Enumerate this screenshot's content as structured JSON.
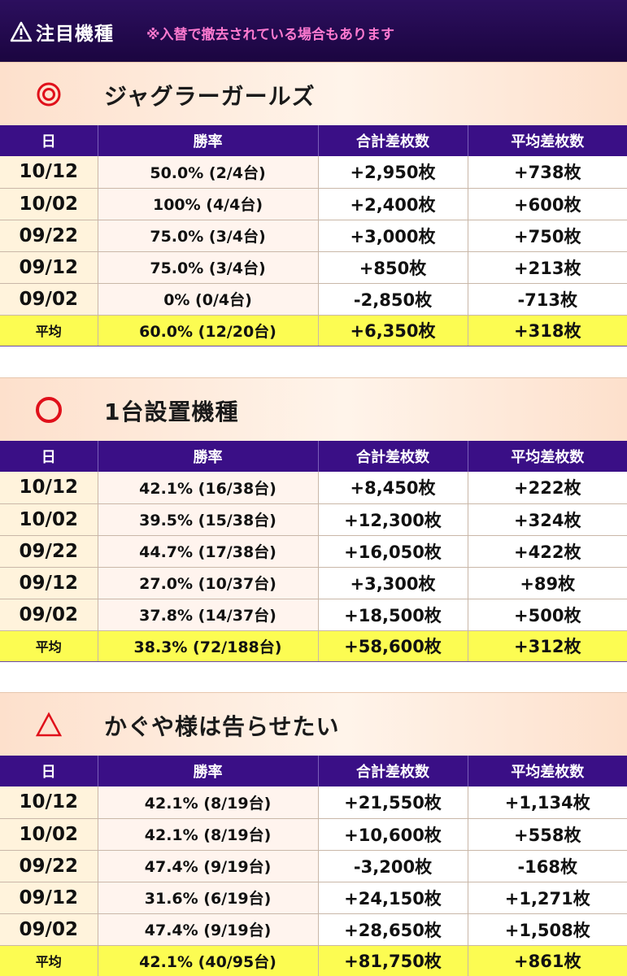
{
  "header": {
    "icon": "warning-icon",
    "title": "注目機種",
    "note": "※入替で撤去されている場合もあります",
    "note_color": "#ff7ad0",
    "bg_color": "#2c0f5e"
  },
  "columns": {
    "date": "日",
    "rate": "勝率",
    "total": "合計差枚数",
    "avg": "平均差枚数"
  },
  "sections": [
    {
      "mark": "◎",
      "mark_icon": "double-circle-icon",
      "title": "ジャグラーガールズ",
      "rows": [
        {
          "date": "10/12",
          "rate": "50.0% (2/4台)",
          "total": "+2,950枚",
          "avg": "+738枚"
        },
        {
          "date": "10/02",
          "rate": "100% (4/4台)",
          "total": "+2,400枚",
          "avg": "+600枚"
        },
        {
          "date": "09/22",
          "rate": "75.0% (3/4台)",
          "total": "+3,000枚",
          "avg": "+750枚"
        },
        {
          "date": "09/12",
          "rate": "75.0% (3/4台)",
          "total": "+850枚",
          "avg": "+213枚"
        },
        {
          "date": "09/02",
          "rate": "0% (0/4台)",
          "total": "-2,850枚",
          "avg": "-713枚"
        }
      ],
      "average": {
        "date": "平均",
        "rate": "60.0% (12/20台)",
        "total": "+6,350枚",
        "avg": "+318枚"
      }
    },
    {
      "mark": "○",
      "mark_icon": "circle-icon",
      "title": "1台設置機種",
      "rows": [
        {
          "date": "10/12",
          "rate": "42.1% (16/38台)",
          "total": "+8,450枚",
          "avg": "+222枚"
        },
        {
          "date": "10/02",
          "rate": "39.5% (15/38台)",
          "total": "+12,300枚",
          "avg": "+324枚"
        },
        {
          "date": "09/22",
          "rate": "44.7% (17/38台)",
          "total": "+16,050枚",
          "avg": "+422枚"
        },
        {
          "date": "09/12",
          "rate": "27.0% (10/37台)",
          "total": "+3,300枚",
          "avg": "+89枚"
        },
        {
          "date": "09/02",
          "rate": "37.8% (14/37台)",
          "total": "+18,500枚",
          "avg": "+500枚"
        }
      ],
      "average": {
        "date": "平均",
        "rate": "38.3% (72/188台)",
        "total": "+58,600枚",
        "avg": "+312枚"
      }
    },
    {
      "mark": "△",
      "mark_icon": "triangle-icon",
      "title": "かぐや様は告らせたい",
      "rows": [
        {
          "date": "10/12",
          "rate": "42.1% (8/19台)",
          "total": "+21,550枚",
          "avg": "+1,134枚"
        },
        {
          "date": "10/02",
          "rate": "42.1% (8/19台)",
          "total": "+10,600枚",
          "avg": "+558枚"
        },
        {
          "date": "09/22",
          "rate": "47.4% (9/19台)",
          "total": "-3,200枚",
          "avg": "-168枚"
        },
        {
          "date": "09/12",
          "rate": "31.6% (6/19台)",
          "total": "+24,150枚",
          "avg": "+1,271枚"
        },
        {
          "date": "09/02",
          "rate": "47.4% (9/19台)",
          "total": "+28,650枚",
          "avg": "+1,508枚"
        }
      ],
      "average": {
        "date": "平均",
        "rate": "42.1% (40/95台)",
        "total": "+81,750枚",
        "avg": "+861枚"
      }
    }
  ],
  "colors": {
    "mark_red": "#e0101a",
    "header_purple": "#3a0f86",
    "average_yellow": "#fcfc52"
  }
}
